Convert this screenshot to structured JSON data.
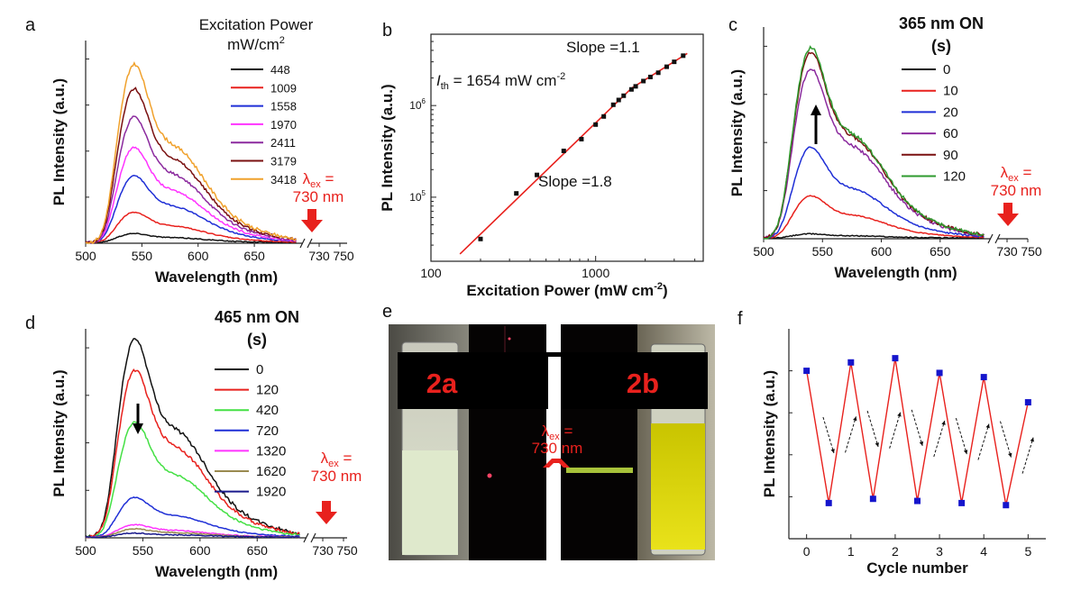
{
  "colors": {
    "red": "#e8211d",
    "black": "#111111",
    "blue": "#1f2fd6",
    "navy": "#1a1a8c",
    "magenta": "#ff33ff",
    "purple": "#8b2a9e",
    "maroon": "#7a1010",
    "orange": "#f0a12c",
    "green": "#2e9a2e",
    "lime": "#44e044",
    "olive": "#9a8a50",
    "marker": "#1515cc"
  },
  "chart_data": [
    {
      "id": "a",
      "type": "line",
      "panel_label": "a",
      "xlabel": "Wavelength (nm)",
      "ylabel": "PL Intensity (a.u.)",
      "xticks": [
        "500",
        "550",
        "600",
        "650",
        "730",
        "750"
      ],
      "legend_title": "Excitation Power",
      "legend_unit": "mW/cm",
      "legend_unit_sup": "2",
      "annotation": {
        "lambda": "λ",
        "sub": "ex",
        "rest": " =",
        "line2": "730 nm"
      },
      "peak_nm": 540,
      "series": [
        {
          "name": "448",
          "peak": 0.045,
          "color": "#111111"
        },
        {
          "name": "1009",
          "peak": 0.15,
          "color": "#e8211d"
        },
        {
          "name": "1558",
          "peak": 0.33,
          "color": "#1f2fd6"
        },
        {
          "name": "1970",
          "peak": 0.47,
          "color": "#ff33ff"
        },
        {
          "name": "2411",
          "peak": 0.62,
          "color": "#8b2a9e"
        },
        {
          "name": "3179",
          "peak": 0.76,
          "color": "#7a1010"
        },
        {
          "name": "3418",
          "peak": 0.88,
          "color": "#f0a12c"
        }
      ]
    },
    {
      "id": "b",
      "type": "scatter",
      "panel_label": "b",
      "xlabel": "Excitation Power (mW cm",
      "xlabel_sup": "-2",
      "xlabel_end": ")",
      "ylabel": "PL Intensity (a.u.)",
      "x_scale": "log",
      "y_scale": "log",
      "xlim": [
        100,
        4500
      ],
      "ylim": [
        20000,
        6000000
      ],
      "xticks": [
        "100",
        "1000"
      ],
      "yticks": [
        {
          "base": "10",
          "exp": "5",
          "value": 100000
        },
        {
          "base": "10",
          "exp": "6",
          "value": 1000000
        }
      ],
      "x": [
        200,
        330,
        440,
        640,
        820,
        1000,
        1120,
        1280,
        1380,
        1480,
        1650,
        1750,
        1950,
        2150,
        2400,
        2700,
        3000,
        3400
      ],
      "y": [
        35000,
        110000,
        175000,
        320000,
        430000,
        620000,
        760000,
        1020000,
        1150000,
        1280000,
        1500000,
        1620000,
        1850000,
        2050000,
        2280000,
        2650000,
        3000000,
        3500000
      ],
      "fit_low": {
        "x": [
          150,
          1654
        ],
        "y": [
          24000,
          1550000
        ],
        "label": "Slope =1.8"
      },
      "fit_high": {
        "x": [
          1654,
          3600
        ],
        "y": [
          1550000,
          3700000
        ],
        "label": "Slope =1.1"
      },
      "threshold": {
        "i": "I",
        "sub": "th",
        "text": " = 1654 mW cm",
        "sup": "-2"
      }
    },
    {
      "id": "c",
      "type": "line",
      "panel_label": "c",
      "xlabel": "Wavelength (nm)",
      "ylabel": "PL Intensity (a.u.)",
      "xticks": [
        "500",
        "550",
        "600",
        "650",
        "730",
        "750"
      ],
      "legend_title": "365 nm ON",
      "legend_unit": "(s)",
      "annotation": {
        "lambda": "λ",
        "sub": "ex",
        "rest": " =",
        "line2": "730 nm"
      },
      "peak_nm": 537,
      "series": [
        {
          "name": "0",
          "peak": 0.02,
          "color": "#111111"
        },
        {
          "name": "10",
          "peak": 0.2,
          "color": "#e8211d"
        },
        {
          "name": "20",
          "peak": 0.43,
          "color": "#1f2fd6"
        },
        {
          "name": "60",
          "peak": 0.8,
          "color": "#8b2a9e"
        },
        {
          "name": "90",
          "peak": 0.88,
          "color": "#7a1010"
        },
        {
          "name": "120",
          "peak": 0.9,
          "color": "#2e9a2e"
        }
      ],
      "arrow": "up"
    },
    {
      "id": "d",
      "type": "line",
      "panel_label": "d",
      "xlabel": "Wavelength (nm)",
      "ylabel": "PL Intensity (a.u.)",
      "xticks": [
        "500",
        "550",
        "600",
        "650",
        "730",
        "750"
      ],
      "legend_title": "465 nm  ON",
      "legend_unit": "(s)",
      "annotation": {
        "lambda": "λ",
        "sub": "ex",
        "rest": " =",
        "line2": "730 nm"
      },
      "peak_nm": 540,
      "series": [
        {
          "name": "0",
          "peak": 0.95,
          "color": "#111111"
        },
        {
          "name": "120",
          "peak": 0.8,
          "color": "#e8211d"
        },
        {
          "name": "420",
          "peak": 0.55,
          "color": "#44e044"
        },
        {
          "name": "720",
          "peak": 0.19,
          "color": "#1f2fd6"
        },
        {
          "name": "1320",
          "peak": 0.06,
          "color": "#ff33ff"
        },
        {
          "name": "1620",
          "peak": 0.04,
          "color": "#9a8a50"
        },
        {
          "name": "1920",
          "peak": 0.02,
          "color": "#1a1a8c"
        }
      ],
      "arrow": "down"
    },
    {
      "id": "f",
      "type": "line",
      "panel_label": "f",
      "xlabel": "Cycle number",
      "ylabel": "PL Intensity (a.u.)",
      "xticks": [
        "0",
        "1",
        "2",
        "3",
        "4",
        "5"
      ],
      "x": [
        0,
        0.5,
        1,
        1.5,
        2,
        2.5,
        3,
        3.5,
        4,
        4.5,
        5
      ],
      "y": [
        0.8,
        0.17,
        0.84,
        0.19,
        0.86,
        0.18,
        0.79,
        0.17,
        0.77,
        0.16,
        0.65
      ],
      "ylim": [
        0,
        1
      ],
      "xlim": [
        -0.4,
        5.4
      ]
    }
  ],
  "photo": {
    "panel_label": "e",
    "left_label": "2a",
    "right_label": "2b",
    "annotation": {
      "lambda": "λ",
      "sub": "ex",
      "rest": " =",
      "line2": "730 nm"
    }
  }
}
